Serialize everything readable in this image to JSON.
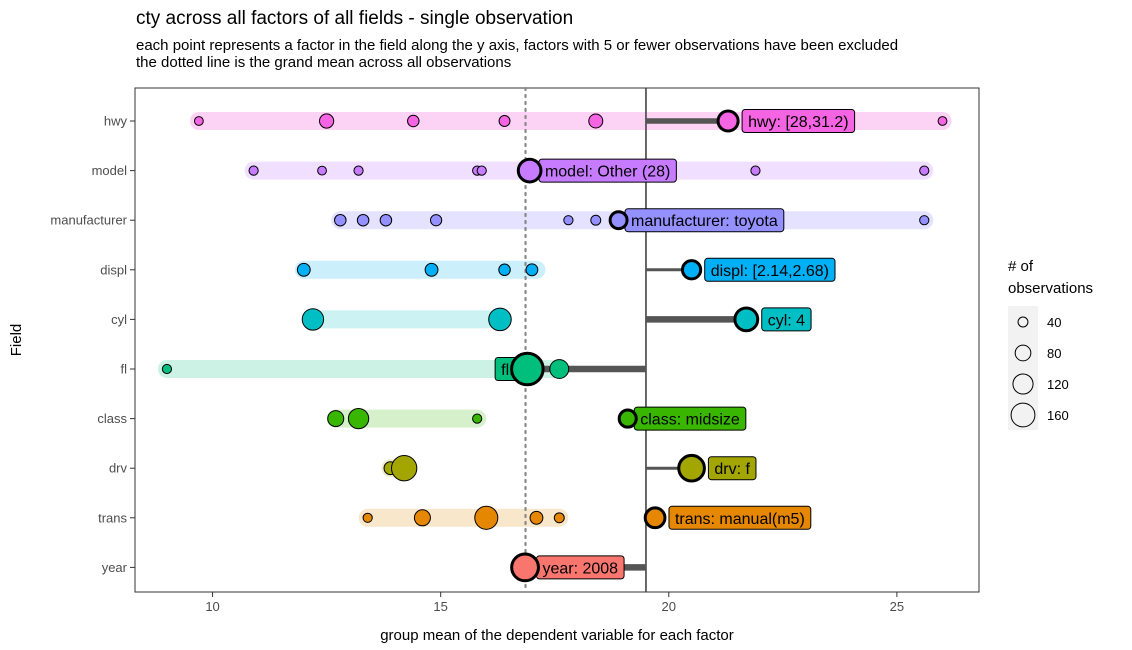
{
  "chart_data": {
    "type": "scatter",
    "title": "cty across all factors of all fields - single observation",
    "subtitle_lines": [
      "each point represents a factor in the field along the y axis, factors with 5 or fewer observations have been excluded",
      "the dotted line is the grand mean across all observations"
    ],
    "xlabel": "group mean of the dependent variable for each factor",
    "ylabel": "Field",
    "xlim": [
      8.3,
      26.8
    ],
    "x_ticks": [
      10,
      15,
      20,
      25
    ],
    "grand_mean": 16.86,
    "observation_value": 19.5,
    "legend": {
      "title_lines": [
        "# of",
        " observations"
      ],
      "sizes": [
        40,
        80,
        120,
        160
      ],
      "position": "right"
    },
    "fields": [
      {
        "name": "hwy",
        "color": "#F564E3",
        "band_color": "#FCD3F5",
        "range": [
          9.7,
          26.0
        ],
        "points": [
          {
            "x": 9.7,
            "n": 7
          },
          {
            "x": 12.5,
            "n": 26
          },
          {
            "x": 14.4,
            "n": 15
          },
          {
            "x": 16.4,
            "n": 13
          },
          {
            "x": 18.4,
            "n": 25
          },
          {
            "x": 26.0,
            "n": 7
          }
        ],
        "selected": {
          "x": 21.3,
          "n": 60
        },
        "label": "hwy: [28,31.2)"
      },
      {
        "name": "model",
        "color": "#C77CFF",
        "band_color": "#F0DFFF",
        "range": [
          10.9,
          25.6
        ],
        "points": [
          {
            "x": 10.9,
            "n": 8
          },
          {
            "x": 12.4,
            "n": 7
          },
          {
            "x": 13.2,
            "n": 8
          },
          {
            "x": 15.8,
            "n": 8
          },
          {
            "x": 15.9,
            "n": 8
          },
          {
            "x": 21.9,
            "n": 8
          },
          {
            "x": 25.6,
            "n": 8
          }
        ],
        "selected": {
          "x": 16.95,
          "n": 80
        },
        "label": "model: Other (28)"
      },
      {
        "name": "manufacturer",
        "color": "#9590FF",
        "band_color": "#E4E2FF",
        "range": [
          12.8,
          25.6
        ],
        "points": [
          {
            "x": 12.8,
            "n": 15
          },
          {
            "x": 13.3,
            "n": 15
          },
          {
            "x": 13.8,
            "n": 15
          },
          {
            "x": 14.9,
            "n": 14
          },
          {
            "x": 17.8,
            "n": 8
          },
          {
            "x": 18.4,
            "n": 10
          },
          {
            "x": 25.6,
            "n": 8
          }
        ],
        "selected": {
          "x": 18.9,
          "n": 40
        },
        "label": "manufacturer: toyota"
      },
      {
        "name": "displ",
        "color": "#00B0F6",
        "band_color": "#CCEFFC",
        "range": [
          12.0,
          17.1
        ],
        "points": [
          {
            "x": 12.0,
            "n": 20
          },
          {
            "x": 14.8,
            "n": 20
          },
          {
            "x": 16.4,
            "n": 15
          },
          {
            "x": 17.0,
            "n": 16
          }
        ],
        "selected": {
          "x": 20.5,
          "n": 48
        },
        "label": "displ: [2.14,2.68)"
      },
      {
        "name": "cyl",
        "color": "#00BFC4",
        "band_color": "#CCF2F3",
        "range": [
          12.2,
          16.3
        ],
        "points": [
          {
            "x": 12.2,
            "n": 70
          },
          {
            "x": 16.3,
            "n": 79
          }
        ],
        "selected": {
          "x": 21.7,
          "n": 81
        },
        "label": "cyl: 4"
      },
      {
        "name": "fl",
        "color": "#00BF7D",
        "band_color": "#CCF2E5",
        "range": [
          9.0,
          17.6
        ],
        "points": [
          {
            "x": 9.0,
            "n": 8
          },
          {
            "x": 17.6,
            "n": 52
          }
        ],
        "selected": {
          "x": 16.9,
          "n": 168
        },
        "label": "fl: r"
      },
      {
        "name": "class",
        "color": "#39B600",
        "band_color": "#D7F0CC",
        "range": [
          12.7,
          15.8
        ],
        "points": [
          {
            "x": 12.7,
            "n": 35
          },
          {
            "x": 13.2,
            "n": 62
          },
          {
            "x": 15.8,
            "n": 8
          }
        ],
        "selected": {
          "x": 19.1,
          "n": 41
        },
        "label": "class: midsize"
      },
      {
        "name": "drv",
        "color": "#A3A500",
        "band_color": "#EDEDCC",
        "range": [
          13.9,
          14.2
        ],
        "points": [
          {
            "x": 13.9,
            "n": 20
          },
          {
            "x": 14.2,
            "n": 103
          }
        ],
        "selected": {
          "x": 20.5,
          "n": 106
        },
        "label": "drv: f"
      },
      {
        "name": "trans",
        "color": "#E58700",
        "band_color": "#F9E7CC",
        "range": [
          13.4,
          17.6
        ],
        "points": [
          {
            "x": 13.4,
            "n": 8
          },
          {
            "x": 14.6,
            "n": 35
          },
          {
            "x": 16.0,
            "n": 83
          },
          {
            "x": 17.1,
            "n": 20
          },
          {
            "x": 17.6,
            "n": 10
          }
        ],
        "selected": {
          "x": 19.7,
          "n": 58
        },
        "label": "trans: manual(m5)"
      },
      {
        "name": "year",
        "color": "#F8766D",
        "band_color": "#FDE3E1",
        "range": [
          16.8,
          17.0
        ],
        "points": [],
        "selected": {
          "x": 16.85,
          "n": 117
        },
        "label": "year: 2008"
      }
    ]
  }
}
